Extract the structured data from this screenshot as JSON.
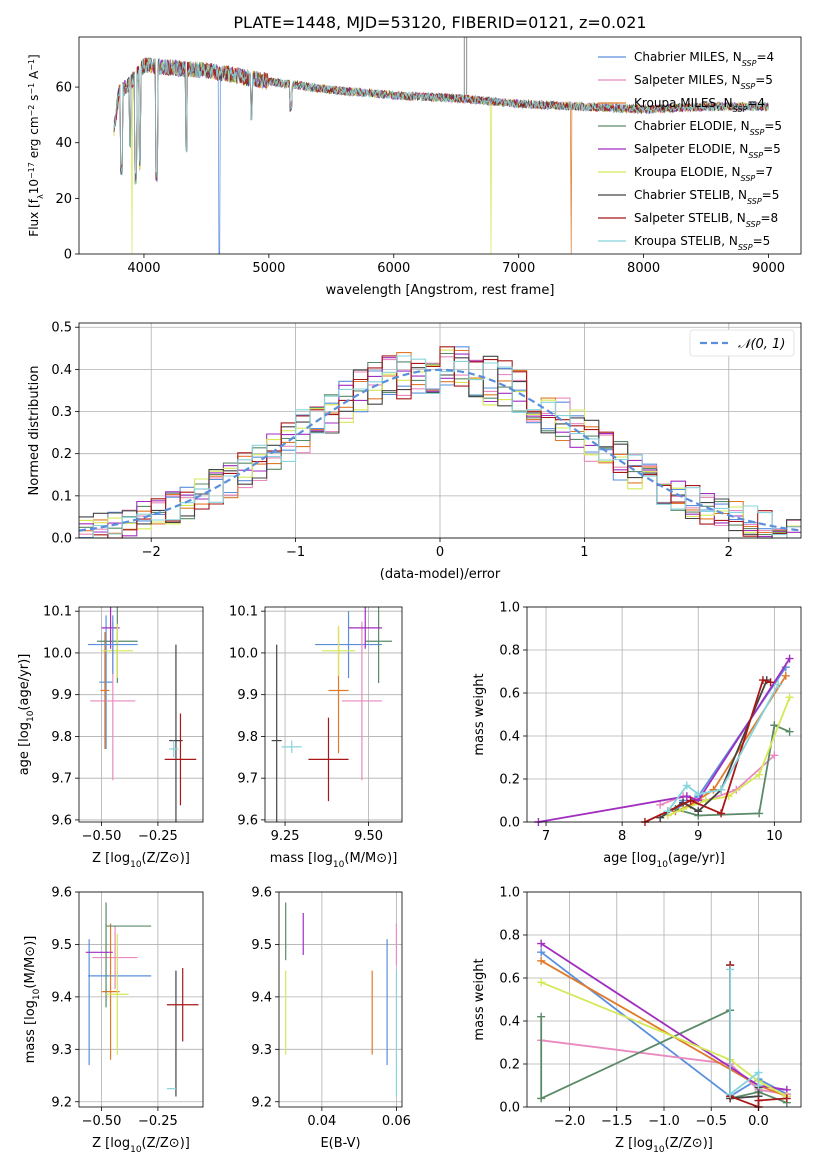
{
  "figure_title": "PLATE=1448, MJD=53120, FIBERID=0121, z=0.021",
  "series": [
    {
      "name": "Chabrier MILES, N_SSP=4",
      "label_main": "Chabrier MILES, N",
      "label_sub": "SSP",
      "label_end": "=4",
      "color": "#5a8fdc"
    },
    {
      "name": "Salpeter MILES, N_SSP=5",
      "label_main": "Salpeter MILES, N",
      "label_sub": "SSP",
      "label_end": "=5",
      "color": "#e88abf"
    },
    {
      "name": "Kroupa MILES, N_SSP=4",
      "label_main": "Kroupa MILES, N",
      "label_sub": "SSP",
      "label_end": "=4",
      "color": "#e07a2a"
    },
    {
      "name": "Chabrier ELODIE, N_SSP=5",
      "label_main": "Chabrier ELODIE, N",
      "label_sub": "SSP",
      "label_end": "=5",
      "color": "#5a8a68"
    },
    {
      "name": "Salpeter ELODIE, N_SSP=5",
      "label_main": "Salpeter ELODIE, N",
      "label_sub": "SSP",
      "label_end": "=5",
      "color": "#a02fc0"
    },
    {
      "name": "Kroupa ELODIE, N_SSP=7",
      "label_main": "Kroupa ELODIE, N",
      "label_sub": "SSP",
      "label_end": "=7",
      "color": "#d6e856"
    },
    {
      "name": "Chabrier STELIB, N_SSP=5",
      "label_main": "Chabrier STELIB, N",
      "label_sub": "SSP",
      "label_end": "=5",
      "color": "#444444"
    },
    {
      "name": "Salpeter STELIB, N_SSP=8",
      "label_main": "Salpeter STELIB, N",
      "label_sub": "SSP",
      "label_end": "=8",
      "color": "#a81818"
    },
    {
      "name": "Kroupa STELIB, N_SSP=5",
      "label_main": "Kroupa STELIB, N",
      "label_sub": "SSP",
      "label_end": "=5",
      "color": "#88d4dc"
    }
  ],
  "chart_data": [
    {
      "id": "spectrum",
      "type": "line",
      "xlabel": "wavelength [Angstrom, rest frame]",
      "ylabel": "Flux [f_λ 10^-17 erg cm^-2 s^-1 A^-1]",
      "ylabel_parts": {
        "a": "Flux [f",
        "b": "λ",
        "c": "10",
        "d": "−17",
        "e": " erg cm",
        "f": "−2",
        "g": " s",
        "h": "−1",
        "i": " A",
        "j": "−1",
        "k": "]"
      },
      "xlim": [
        3480,
        9260
      ],
      "ylim": [
        0,
        78
      ],
      "xticks": [
        4000,
        5000,
        6000,
        7000,
        8000,
        9000
      ],
      "yticks": [
        0,
        20,
        40,
        60
      ],
      "continuum": [
        [
          3760,
          45
        ],
        [
          3800,
          58
        ],
        [
          3900,
          62
        ],
        [
          4000,
          68
        ],
        [
          4200,
          67
        ],
        [
          4500,
          66
        ],
        [
          5000,
          62
        ],
        [
          5500,
          59
        ],
        [
          6000,
          57
        ],
        [
          6500,
          56
        ],
        [
          7000,
          54
        ],
        [
          7500,
          53
        ],
        [
          8000,
          52
        ],
        [
          8500,
          53
        ],
        [
          9000,
          53
        ]
      ],
      "dips": [
        [
          3820,
          28
        ],
        [
          3890,
          38
        ],
        [
          3933,
          25
        ],
        [
          3968,
          30
        ],
        [
          4101,
          26
        ],
        [
          4340,
          36
        ],
        [
          4861,
          48
        ],
        [
          5175,
          51
        ]
      ],
      "drops": [
        [
          3905,
          "Kroupa ELODIE, N_SSP=7"
        ],
        [
          4603,
          "Chabrier MILES, N_SSP=4"
        ],
        [
          6780,
          "Kroupa ELODIE, N_SSP=7"
        ],
        [
          7420,
          "Kroupa MILES, N_SSP=4"
        ]
      ],
      "spikes": [
        [
          6565,
          78
        ],
        [
          6583,
          78
        ]
      ],
      "legend": "top-right"
    },
    {
      "id": "residuals",
      "type": "histogram",
      "xlabel": "(data-model)/error",
      "ylabel": "Normed distribution",
      "xlim": [
        -2.5,
        2.5
      ],
      "ylim": [
        0,
        0.51
      ],
      "xticks": [
        -2,
        -1,
        0,
        1,
        2
      ],
      "yticks": [
        0.0,
        0.1,
        0.2,
        0.3,
        0.4,
        0.5
      ],
      "bin_width": 0.1,
      "reference": {
        "label": "𝒩(0, 1)",
        "mean": 0,
        "sigma": 1,
        "color": "#5a8fdc"
      },
      "legend": "top-right"
    },
    {
      "id": "age-vs-Z",
      "type": "errorbar",
      "xlabel": "Z [log10(Z/Z⊙)]",
      "ylabel": "age [log10(age/yr)]",
      "xlim": [
        -0.6,
        -0.05
      ],
      "ylim": [
        9.595,
        10.11
      ],
      "xticks": [
        -0.5,
        -0.25
      ],
      "yticks": [
        9.6,
        9.7,
        9.8,
        9.9,
        10.0,
        10.1
      ],
      "points": [
        {
          "series": "Chabrier MILES, N_SSP=4",
          "x": -0.48,
          "xerr": 0.03,
          "y": 9.93,
          "yerr": 0.16
        },
        {
          "series": "Salpeter MILES, N_SSP=5",
          "x": -0.45,
          "xerr": 0.1,
          "y": 9.885,
          "yerr": 0.19
        },
        {
          "series": "Kroupa MILES, N_SSP=4",
          "x": -0.485,
          "xerr": 0.02,
          "y": 9.91,
          "yerr": 0.14
        },
        {
          "series": "Chabrier ELODIE, N_SSP=5",
          "x": -0.43,
          "xerr": 0.09,
          "y": 10.028,
          "yerr": 0.1
        },
        {
          "series": "Salpeter ELODIE, N_SSP=5",
          "x": -0.46,
          "xerr": 0.04,
          "y": 10.06,
          "yerr": 0.05
        },
        {
          "series": "Kroupa ELODIE, N_SSP=7",
          "x": -0.43,
          "xerr": 0.07,
          "y": 10.005,
          "yerr": 0.065
        },
        {
          "series": "Chabrier STELIB, N_SSP=5",
          "x": -0.17,
          "xerr": 0.03,
          "y": 9.79,
          "yerr": 0.23
        },
        {
          "series": "Salpeter STELIB, N_SSP=8",
          "x": -0.15,
          "xerr": 0.07,
          "y": 9.745,
          "yerr": 0.11
        },
        {
          "series": "Kroupa STELIB, N_SSP=5",
          "x": -0.18,
          "xerr": 0.02,
          "y": 9.77,
          "yerr": 0.02
        },
        {
          "series": "Chabrier MILES, N_SSP=4",
          "x": -0.45,
          "xerr": 0.11,
          "y": 10.02,
          "yerr": 0.07
        }
      ]
    },
    {
      "id": "age-vs-mass",
      "type": "errorbar",
      "xlabel": "mass [log10(M/M⊙)]",
      "ylabel": "",
      "xlim": [
        9.19,
        9.6
      ],
      "ylim": [
        9.595,
        10.11
      ],
      "xticks": [
        9.25,
        9.5
      ],
      "yticks": [
        9.6,
        9.7,
        9.8,
        9.9,
        10.0,
        10.1
      ],
      "points": [
        {
          "series": "Chabrier MILES, N_SSP=4",
          "x": 9.44,
          "xerr": 0.1,
          "y": 10.02,
          "yerr": 0.08
        },
        {
          "series": "Salpeter MILES, N_SSP=5",
          "x": 9.48,
          "xerr": 0.06,
          "y": 9.885,
          "yerr": 0.19
        },
        {
          "series": "Kroupa MILES, N_SSP=4",
          "x": 9.41,
          "xerr": 0.03,
          "y": 9.91,
          "yerr": 0.15
        },
        {
          "series": "Chabrier ELODIE, N_SSP=5",
          "x": 9.53,
          "xerr": 0.04,
          "y": 10.028,
          "yerr": 0.1
        },
        {
          "series": "Salpeter ELODIE, N_SSP=5",
          "x": 9.49,
          "xerr": 0.05,
          "y": 10.06,
          "yerr": 0.05
        },
        {
          "series": "Kroupa ELODIE, N_SSP=7",
          "x": 9.41,
          "xerr": 0.05,
          "y": 10.005,
          "yerr": 0.06
        },
        {
          "series": "Chabrier STELIB, N_SSP=5",
          "x": 9.225,
          "xerr": 0.015,
          "y": 9.79,
          "yerr": 0.23
        },
        {
          "series": "Salpeter STELIB, N_SSP=8",
          "x": 9.38,
          "xerr": 0.06,
          "y": 9.745,
          "yerr": 0.1
        },
        {
          "series": "Kroupa STELIB, N_SSP=5",
          "x": 9.27,
          "xerr": 0.03,
          "y": 9.775,
          "yerr": 0.015
        }
      ]
    },
    {
      "id": "weight-vs-age",
      "type": "line",
      "xlabel": "age [log10(age/yr)]",
      "ylabel": "mass weight",
      "xlim": [
        6.75,
        10.35
      ],
      "ylim": [
        0,
        1.0
      ],
      "xticks": [
        7,
        8,
        9,
        10
      ],
      "yticks": [
        0.0,
        0.2,
        0.4,
        0.6,
        0.8,
        1.0
      ],
      "lines": [
        {
          "series": "Chabrier MILES, N_SSP=4",
          "x": [
            8.8,
            8.7,
            9.0,
            10.15
          ],
          "y": [
            0.1,
            0.06,
            0.12,
            0.72
          ]
        },
        {
          "series": "Salpeter MILES, N_SSP=5",
          "x": [
            8.5,
            8.8,
            9.1,
            9.5,
            10.0
          ],
          "y": [
            0.08,
            0.12,
            0.1,
            0.15,
            0.31
          ]
        },
        {
          "series": "Kroupa MILES, N_SSP=4",
          "x": [
            8.7,
            8.9,
            9.2,
            10.15
          ],
          "y": [
            0.05,
            0.08,
            0.15,
            0.68
          ]
        },
        {
          "series": "Chabrier ELODIE, N_SSP=5",
          "x": [
            8.7,
            9.0,
            9.8,
            10.0,
            10.2
          ],
          "y": [
            0.06,
            0.03,
            0.04,
            0.45,
            0.42
          ]
        },
        {
          "series": "Salpeter ELODIE, N_SSP=5",
          "x": [
            6.9,
            8.85,
            9.0,
            10.2
          ],
          "y": [
            0.0,
            0.12,
            0.1,
            0.76
          ]
        },
        {
          "series": "Kroupa ELODIE, N_SSP=7",
          "x": [
            8.6,
            8.8,
            9.1,
            9.4,
            9.8,
            10.2
          ],
          "y": [
            0.03,
            0.06,
            0.1,
            0.12,
            0.22,
            0.58
          ]
        },
        {
          "series": "Chabrier STELIB, N_SSP=5",
          "x": [
            8.5,
            8.8,
            9.0,
            9.3,
            9.9
          ],
          "y": [
            0.02,
            0.09,
            0.05,
            0.15,
            0.66
          ]
        },
        {
          "series": "Salpeter STELIB, N_SSP=8",
          "x": [
            8.3,
            8.6,
            8.9,
            9.3,
            9.85,
            9.95
          ],
          "y": [
            0.0,
            0.05,
            0.1,
            0.04,
            0.66,
            0.65
          ]
        },
        {
          "series": "Kroupa STELIB, N_SSP=5",
          "x": [
            8.6,
            8.85,
            9.0,
            9.3,
            10.05
          ],
          "y": [
            0.05,
            0.17,
            0.13,
            0.15,
            0.64
          ]
        }
      ]
    },
    {
      "id": "mass-vs-Z",
      "type": "errorbar",
      "xlabel": "Z [log10(Z/Z⊙)]",
      "ylabel": "mass [log10(M/M⊙)]",
      "xlim": [
        -0.6,
        -0.05
      ],
      "ylim": [
        9.19,
        9.6
      ],
      "xticks": [
        -0.5,
        -0.25
      ],
      "yticks": [
        9.2,
        9.3,
        9.4,
        9.5,
        9.6
      ],
      "points": [
        {
          "series": "Chabrier MILES, N_SSP=4",
          "x": -0.42,
          "xerr": 0.14,
          "y": 9.44,
          "yerr": 0.0
        },
        {
          "series": "Chabrier MILES, N_SSP=4",
          "x": -0.555,
          "xerr": 0.0,
          "y": 9.39,
          "yerr": 0.12
        },
        {
          "series": "Salpeter MILES, N_SSP=5",
          "x": -0.44,
          "xerr": 0.1,
          "y": 9.475,
          "yerr": 0.06
        },
        {
          "series": "Kroupa MILES, N_SSP=4",
          "x": -0.46,
          "xerr": 0.04,
          "y": 9.41,
          "yerr": 0.13
        },
        {
          "series": "Chabrier ELODIE, N_SSP=5",
          "x": -0.48,
          "xerr": 0.0,
          "y": 9.48,
          "yerr": 0.1
        },
        {
          "series": "Chabrier ELODIE, N_SSP=5",
          "x": -0.38,
          "xerr": 0.1,
          "y": 9.535,
          "yerr": 0.0
        },
        {
          "series": "Salpeter ELODIE, N_SSP=5",
          "x": -0.51,
          "xerr": 0.06,
          "y": 9.485,
          "yerr": 0.0
        },
        {
          "series": "Kroupa ELODIE, N_SSP=7",
          "x": -0.43,
          "xerr": 0.05,
          "y": 9.405,
          "yerr": 0.115
        },
        {
          "series": "Chabrier STELIB, N_SSP=5",
          "x": -0.17,
          "xerr": 0.0,
          "y": 9.33,
          "yerr": 0.12
        },
        {
          "series": "Salpeter STELIB, N_SSP=8",
          "x": -0.14,
          "xerr": 0.07,
          "y": 9.385,
          "yerr": 0.07
        },
        {
          "series": "Kroupa STELIB, N_SSP=5",
          "x": -0.19,
          "xerr": 0.02,
          "y": 9.225,
          "yerr": 0.0
        }
      ]
    },
    {
      "id": "mass-vs-EBV",
      "type": "errorbar",
      "xlabel": "E(B-V)",
      "ylabel": "",
      "xlim": [
        0.0285,
        0.0615
      ],
      "ylim": [
        9.19,
        9.6
      ],
      "xticks": [
        0.04,
        0.06
      ],
      "yticks": [
        9.2,
        9.3,
        9.4,
        9.5,
        9.6
      ],
      "points": [
        {
          "series": "Chabrier ELODIE, N_SSP=5",
          "x": 0.0303,
          "xerr": 0.0,
          "y": 9.525,
          "yerr": 0.055
        },
        {
          "series": "Kroupa ELODIE, N_SSP=7",
          "x": 0.0303,
          "xerr": 0.0,
          "y": 9.37,
          "yerr": 0.08
        },
        {
          "series": "Salpeter ELODIE, N_SSP=5",
          "x": 0.035,
          "xerr": 0.0,
          "y": 9.52,
          "yerr": 0.04
        },
        {
          "series": "Kroupa MILES, N_SSP=4",
          "x": 0.0535,
          "xerr": 0.0,
          "y": 9.37,
          "yerr": 0.08
        },
        {
          "series": "Chabrier MILES, N_SSP=4",
          "x": 0.0575,
          "xerr": 0.0,
          "y": 9.39,
          "yerr": 0.12
        },
        {
          "series": "Salpeter MILES, N_SSP=5",
          "x": 0.06,
          "xerr": 0.0,
          "y": 9.5,
          "yerr": 0.04
        },
        {
          "series": "Kroupa STELIB, N_SSP=5",
          "x": 0.06,
          "xerr": 0.0,
          "y": 9.33,
          "yerr": 0.12
        }
      ]
    },
    {
      "id": "weight-vs-Z",
      "type": "line",
      "xlabel": "Z [log10(Z/Z⊙)]",
      "ylabel": "mass weight",
      "xlim": [
        -2.45,
        0.45
      ],
      "ylim": [
        0,
        1.0
      ],
      "xticks": [
        -2.0,
        -1.5,
        -1.0,
        -0.5,
        0.0
      ],
      "yticks": [
        0.0,
        0.2,
        0.4,
        0.6,
        0.8,
        1.0
      ],
      "lines": [
        {
          "series": "Chabrier MILES, N_SSP=4",
          "x": [
            -2.3,
            -0.3,
            0.0,
            0.3
          ],
          "y": [
            0.72,
            0.05,
            0.13,
            0.06
          ]
        },
        {
          "series": "Salpeter MILES, N_SSP=5",
          "x": [
            -2.3,
            -0.3,
            0.0,
            0.3
          ],
          "y": [
            0.31,
            0.2,
            0.08,
            0.06
          ]
        },
        {
          "series": "Kroupa MILES, N_SSP=4",
          "x": [
            -2.3,
            0.0,
            0.3
          ],
          "y": [
            0.68,
            0.1,
            0.05
          ]
        },
        {
          "series": "Chabrier ELODIE, N_SSP=5",
          "x": [
            -2.3,
            -2.3,
            -0.3,
            -0.3,
            0.0,
            0.3
          ],
          "y": [
            0.42,
            0.04,
            0.45,
            0.04,
            0.07,
            0.02
          ]
        },
        {
          "series": "Salpeter ELODIE, N_SSP=5",
          "x": [
            -2.3,
            0.0,
            0.3
          ],
          "y": [
            0.76,
            0.1,
            0.08
          ]
        },
        {
          "series": "Kroupa ELODIE, N_SSP=7",
          "x": [
            -2.3,
            -0.3,
            0.0,
            0.3
          ],
          "y": [
            0.58,
            0.22,
            0.12,
            0.05
          ]
        },
        {
          "series": "Chabrier STELIB, N_SSP=5",
          "x": [
            -0.3,
            -0.3,
            0.0,
            0.0
          ],
          "y": [
            0.66,
            0.04,
            0.05,
            0.09
          ]
        },
        {
          "series": "Salpeter STELIB, N_SSP=8",
          "x": [
            -0.3,
            -0.3,
            0.0,
            0.0,
            0.3
          ],
          "y": [
            0.66,
            0.05,
            0.0,
            0.03,
            0.04
          ]
        },
        {
          "series": "Kroupa STELIB, N_SSP=5",
          "x": [
            -0.3,
            -0.3,
            0.0,
            0.0
          ],
          "y": [
            0.64,
            0.06,
            0.16,
            0.1
          ]
        }
      ]
    }
  ]
}
